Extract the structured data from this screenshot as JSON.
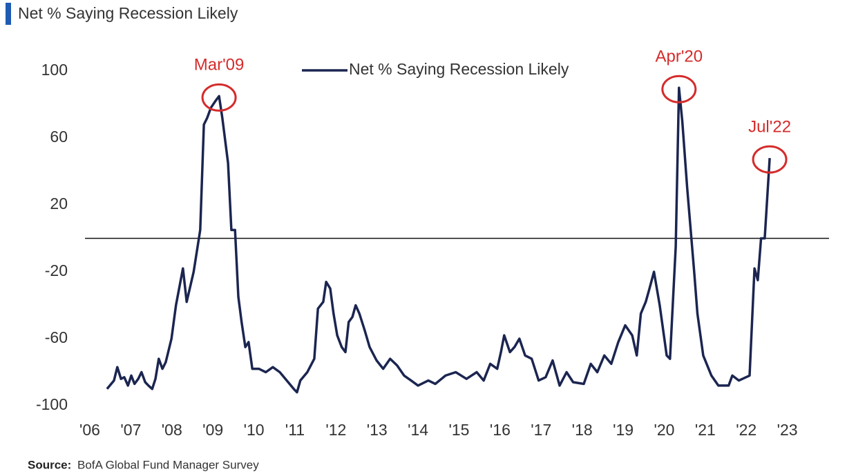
{
  "chart_data": {
    "type": "line",
    "title": "Net % Saying Recession Likely",
    "source_label": "Source:",
    "source": "BofA Global Fund Manager Survey",
    "legend": "upper center",
    "hlines": [
      0
    ],
    "series": [
      {
        "name": "Net % Saying Recession Likely",
        "color": "#1b2550",
        "x": [
          2006.42,
          2006.59,
          2006.67,
          2006.76,
          2006.84,
          2006.93,
          2007.01,
          2007.09,
          2007.18,
          2007.26,
          2007.35,
          2007.43,
          2007.52,
          2007.6,
          2007.68,
          2007.77,
          2007.85,
          2007.99,
          2008.1,
          2008.27,
          2008.36,
          2008.53,
          2008.69,
          2008.78,
          2008.86,
          2008.95,
          2009.06,
          2009.15,
          2009.23,
          2009.37,
          2009.45,
          2009.54,
          2009.62,
          2009.7,
          2009.79,
          2009.87,
          2009.96,
          2010.12,
          2010.29,
          2010.46,
          2010.63,
          2010.8,
          2010.97,
          2011.05,
          2011.13,
          2011.3,
          2011.47,
          2011.56,
          2011.69,
          2011.76,
          2011.86,
          2011.94,
          2012.03,
          2012.14,
          2012.23,
          2012.31,
          2012.4,
          2012.48,
          2012.57,
          2012.7,
          2012.82,
          2012.99,
          2013.15,
          2013.32,
          2013.49,
          2013.66,
          2013.83,
          2014.0,
          2014.25,
          2014.42,
          2014.67,
          2014.92,
          2015.18,
          2015.43,
          2015.6,
          2015.76,
          2015.93,
          2016.02,
          2016.1,
          2016.24,
          2016.35,
          2016.47,
          2016.61,
          2016.77,
          2016.94,
          2017.11,
          2017.28,
          2017.45,
          2017.62,
          2017.78,
          2018.04,
          2018.21,
          2018.37,
          2018.54,
          2018.71,
          2018.88,
          2019.05,
          2019.22,
          2019.33,
          2019.43,
          2019.55,
          2019.64,
          2019.75,
          2019.89,
          2020.06,
          2020.14,
          2020.28,
          2020.36,
          2020.44,
          2020.56,
          2020.73,
          2020.81,
          2020.95,
          2021.15,
          2021.32,
          2021.57,
          2021.66,
          2021.82,
          2022.08,
          2022.2,
          2022.28,
          2022.36,
          2022.45,
          2022.57
        ],
        "values": [
          -90,
          -85,
          -77,
          -84,
          -83,
          -88,
          -82,
          -87,
          -84,
          -80,
          -86,
          -88,
          -90,
          -84,
          -72,
          -78,
          -74,
          -60,
          -40,
          -18,
          -38,
          -20,
          5,
          68,
          72,
          78,
          82,
          85,
          72,
          45,
          5,
          5,
          -35,
          -50,
          -65,
          -62,
          -78,
          -78,
          -80,
          -77,
          -80,
          -85,
          -90,
          -92,
          -85,
          -80,
          -72,
          -42,
          -38,
          -26,
          -30,
          -45,
          -58,
          -65,
          -68,
          -50,
          -47,
          -40,
          -45,
          -55,
          -65,
          -73,
          -78,
          -72,
          -76,
          -82,
          -85,
          -88,
          -85,
          -87,
          -82,
          -80,
          -84,
          -80,
          -85,
          -75,
          -78,
          -68,
          -58,
          -68,
          -65,
          -60,
          -70,
          -72,
          -85,
          -83,
          -73,
          -88,
          -80,
          -86,
          -87,
          -75,
          -80,
          -70,
          -75,
          -62,
          -52,
          -58,
          -70,
          -45,
          -38,
          -30,
          -20,
          -40,
          -70,
          -72,
          -5,
          90,
          70,
          30,
          -20,
          -45,
          -70,
          -82,
          -88,
          -88,
          -82,
          -85,
          -82,
          -18,
          -25,
          0,
          0,
          48
        ]
      }
    ],
    "annotations": [
      {
        "text": "Mar'09",
        "x": 2009.15,
        "y": 85
      },
      {
        "text": "Apr'20",
        "x": 2020.36,
        "y": 90
      },
      {
        "text": "Jul'22",
        "x": 2022.57,
        "y": 48
      }
    ],
    "xlim": [
      2006,
      2024
    ],
    "xticks": [
      {
        "value": 2006,
        "label": "'06"
      },
      {
        "value": 2007,
        "label": "'07"
      },
      {
        "value": 2008,
        "label": "'08"
      },
      {
        "value": 2009,
        "label": "'09"
      },
      {
        "value": 2010,
        "label": "'10"
      },
      {
        "value": 2011,
        "label": "'11"
      },
      {
        "value": 2012,
        "label": "'12"
      },
      {
        "value": 2013,
        "label": "'13"
      },
      {
        "value": 2014,
        "label": "'14"
      },
      {
        "value": 2015,
        "label": "'15"
      },
      {
        "value": 2016,
        "label": "'16"
      },
      {
        "value": 2017,
        "label": "'17"
      },
      {
        "value": 2018,
        "label": "'18"
      },
      {
        "value": 2019,
        "label": "'19"
      },
      {
        "value": 2020,
        "label": "'20"
      },
      {
        "value": 2021,
        "label": "'21"
      },
      {
        "value": 2022,
        "label": "'22"
      },
      {
        "value": 2023,
        "label": "'23"
      }
    ],
    "ylim": [
      -100,
      100
    ],
    "yticks": [
      -100,
      -60,
      -20,
      20,
      60,
      100
    ],
    "grid": false
  }
}
